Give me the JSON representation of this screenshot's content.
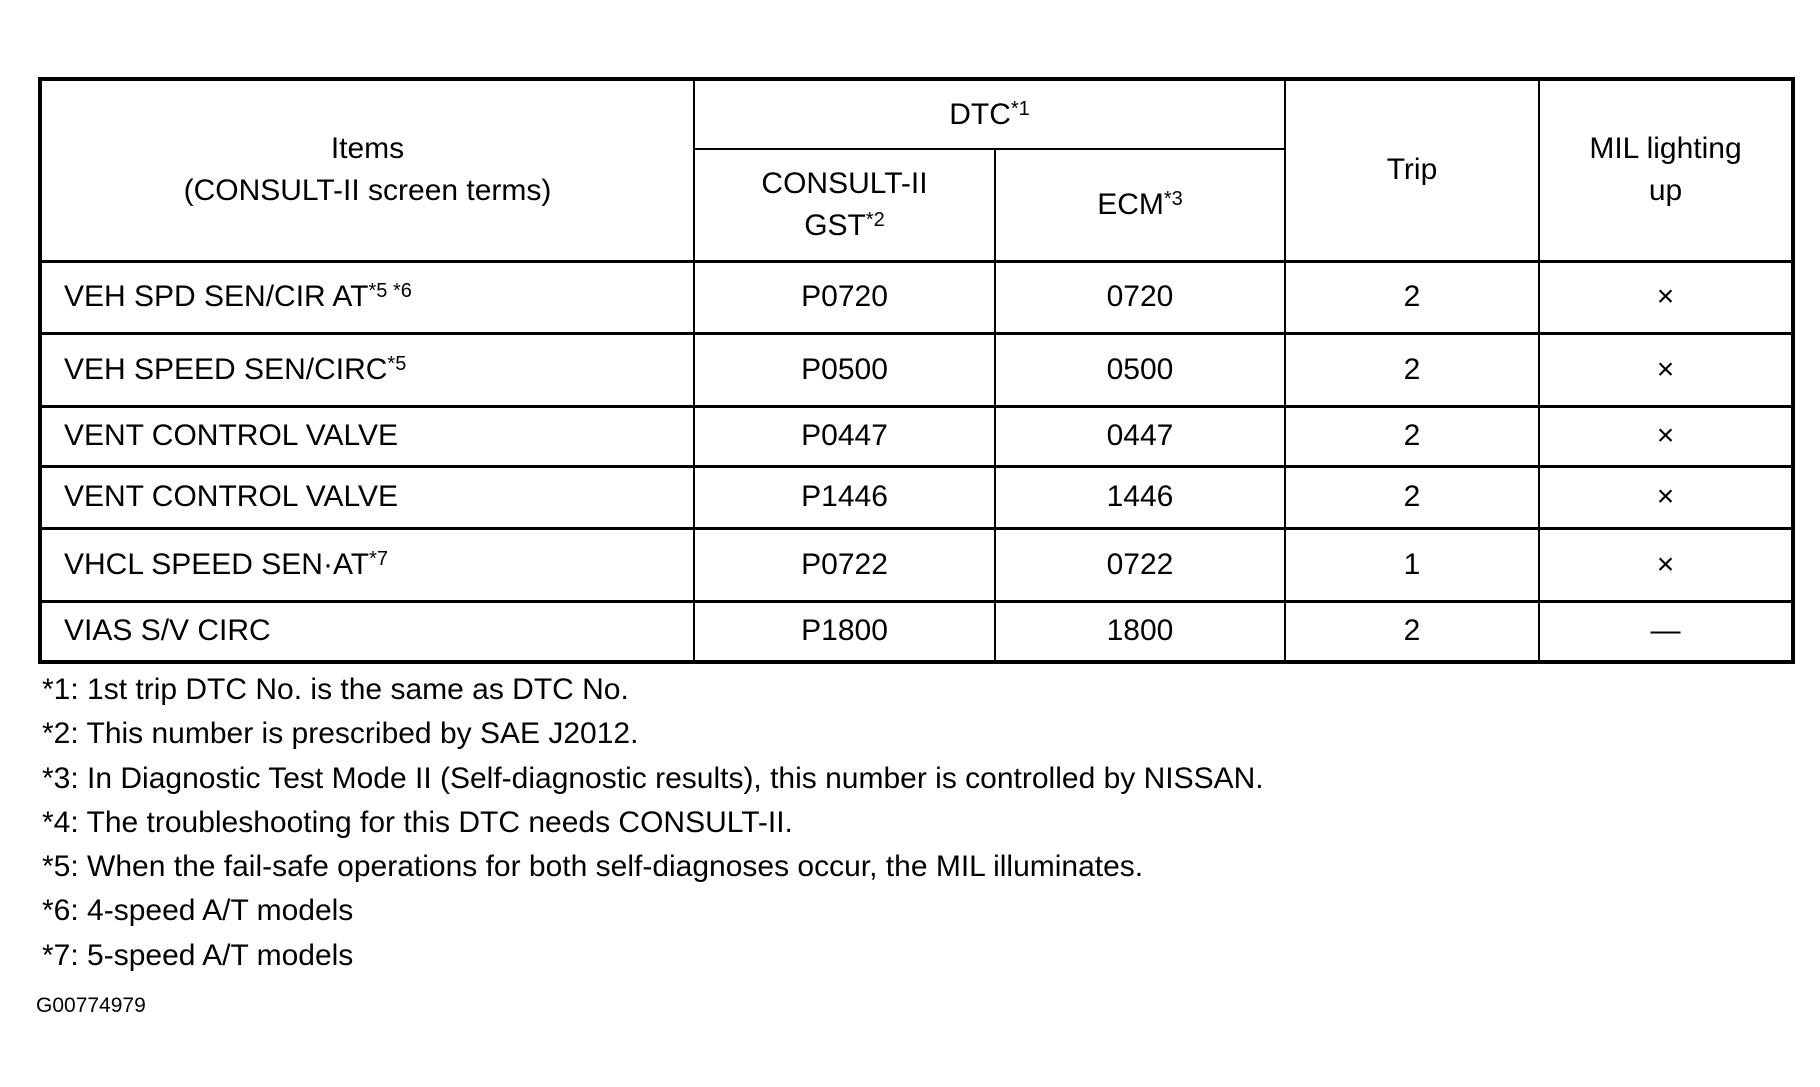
{
  "header": {
    "items_line1": "Items",
    "items_line2": "(CONSULT-II screen terms)",
    "dtc": "DTC",
    "dtc_sup": "*1",
    "consult_line1": "CONSULT-II",
    "consult_line2": "GST",
    "consult_sup": "*2",
    "ecm": "ECM",
    "ecm_sup": "*3",
    "trip": "Trip",
    "mil_line1": "MIL lighting",
    "mil_line2": "up"
  },
  "rows": [
    {
      "item": "VEH SPD SEN/CIR AT",
      "sup": "*5 *6",
      "consult": "P0720",
      "ecm": "0720",
      "trip": "2",
      "mil": "×"
    },
    {
      "item": "VEH SPEED SEN/CIRC",
      "sup": "*5",
      "consult": "P0500",
      "ecm": "0500",
      "trip": "2",
      "mil": "×"
    },
    {
      "item": "VENT CONTROL VALVE",
      "sup": "",
      "consult": "P0447",
      "ecm": "0447",
      "trip": "2",
      "mil": "×"
    },
    {
      "item": "VENT CONTROL VALVE",
      "sup": "",
      "consult": "P1446",
      "ecm": "1446",
      "trip": "2",
      "mil": "×"
    },
    {
      "item": "VHCL SPEED SEN·AT",
      "sup": "*7",
      "consult": "P0722",
      "ecm": "0722",
      "trip": "1",
      "mil": "×"
    },
    {
      "item": "VIAS S/V CIRC",
      "sup": "",
      "consult": "P1800",
      "ecm": "1800",
      "trip": "2",
      "mil": "—"
    }
  ],
  "notes": [
    "*1: 1st trip DTC No. is the same as DTC No.",
    "*2: This number is prescribed by SAE J2012.",
    "*3: In Diagnostic Test Mode II (Self-diagnostic results), this number is controlled by NISSAN.",
    "*4: The troubleshooting for this DTC needs CONSULT-II.",
    "*5: When the fail-safe operations for both self-diagnoses occur, the MIL illuminates.",
    "*6: 4-speed A/T models",
    "*7: 5-speed A/T models"
  ],
  "figure_code": "G00774979"
}
